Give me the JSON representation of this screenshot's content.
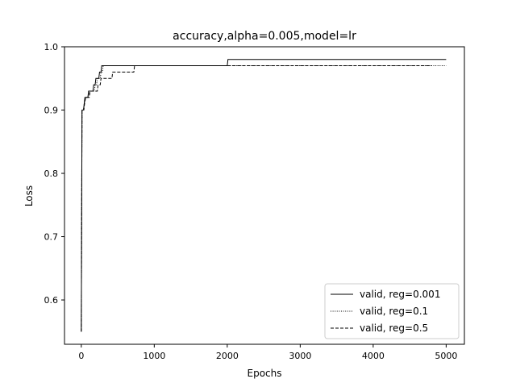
{
  "chart_data": {
    "type": "line",
    "title": "accuracy,alpha=0.005,model=lr",
    "xlabel": "Epochs",
    "ylabel": "Loss",
    "xlim": [
      -230,
      5250
    ],
    "ylim": [
      0.53,
      1.0
    ],
    "xticks": [
      0,
      1000,
      2000,
      3000,
      4000,
      5000
    ],
    "yticks": [
      0.6,
      0.7,
      0.8,
      0.9,
      1.0
    ],
    "grid": false,
    "legend_position": "lower-right",
    "series": [
      {
        "name": "valid, reg=0.001",
        "dash": "solid",
        "points": [
          [
            0,
            0.55
          ],
          [
            10,
            0.9
          ],
          [
            30,
            0.9
          ],
          [
            40,
            0.91
          ],
          [
            50,
            0.92
          ],
          [
            90,
            0.92
          ],
          [
            100,
            0.93
          ],
          [
            160,
            0.93
          ],
          [
            170,
            0.94
          ],
          [
            190,
            0.94
          ],
          [
            200,
            0.95
          ],
          [
            240,
            0.95
          ],
          [
            250,
            0.96
          ],
          [
            270,
            0.96
          ],
          [
            280,
            0.97
          ],
          [
            2000,
            0.97
          ],
          [
            2010,
            0.98
          ],
          [
            5000,
            0.98
          ]
        ]
      },
      {
        "name": "valid, reg=0.1",
        "dash": "dotted",
        "points": [
          [
            0,
            0.55
          ],
          [
            10,
            0.9
          ],
          [
            30,
            0.9
          ],
          [
            40,
            0.91
          ],
          [
            55,
            0.92
          ],
          [
            100,
            0.92
          ],
          [
            110,
            0.93
          ],
          [
            180,
            0.93
          ],
          [
            190,
            0.94
          ],
          [
            210,
            0.94
          ],
          [
            220,
            0.95
          ],
          [
            260,
            0.95
          ],
          [
            270,
            0.96
          ],
          [
            290,
            0.96
          ],
          [
            300,
            0.97
          ],
          [
            5000,
            0.97
          ]
        ]
      },
      {
        "name": "valid, reg=0.5",
        "dash": "dashed",
        "points": [
          [
            0,
            0.55
          ],
          [
            10,
            0.9
          ],
          [
            35,
            0.9
          ],
          [
            45,
            0.91
          ],
          [
            60,
            0.92
          ],
          [
            110,
            0.92
          ],
          [
            120,
            0.93
          ],
          [
            220,
            0.93
          ],
          [
            230,
            0.94
          ],
          [
            260,
            0.94
          ],
          [
            270,
            0.95
          ],
          [
            420,
            0.95
          ],
          [
            430,
            0.96
          ],
          [
            720,
            0.96
          ],
          [
            730,
            0.97
          ],
          [
            4800,
            0.97
          ]
        ]
      }
    ]
  }
}
